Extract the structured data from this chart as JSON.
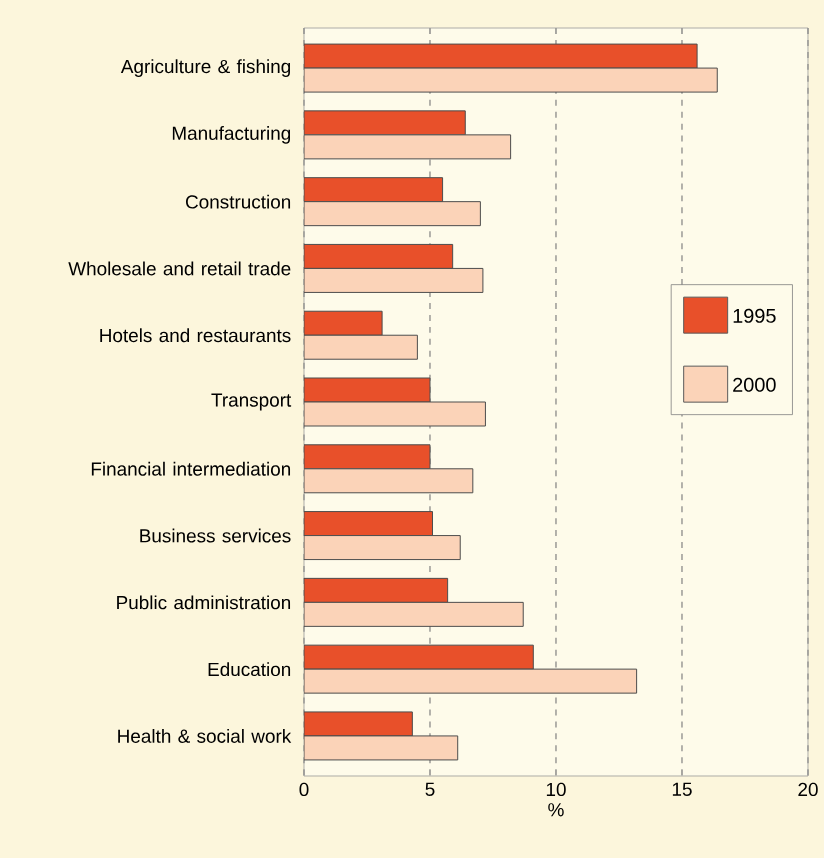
{
  "chart_data": {
    "type": "bar",
    "orientation": "horizontal",
    "xlabel": "%",
    "categories": [
      "Agriculture & fishing",
      "Manufacturing",
      "Construction",
      "Wholesale and retail trade",
      "Hotels and restaurants",
      "Transport",
      "Financial intermediation",
      "Business services",
      "Public administration",
      "Education",
      "Health & social work"
    ],
    "series": [
      {
        "name": "1995",
        "color": "#e8502a",
        "values": [
          15.6,
          6.4,
          5.5,
          5.9,
          3.1,
          5.0,
          5.0,
          5.1,
          5.7,
          9.1,
          4.3
        ]
      },
      {
        "name": "2000",
        "color": "#fbd3b8",
        "values": [
          16.4,
          8.2,
          7.0,
          7.1,
          4.5,
          7.2,
          6.7,
          6.2,
          8.7,
          13.2,
          6.1
        ]
      }
    ],
    "xlim": [
      0,
      20
    ],
    "xticks": [
      0,
      5,
      10,
      15,
      20
    ],
    "grid": "x",
    "legend": "right"
  }
}
